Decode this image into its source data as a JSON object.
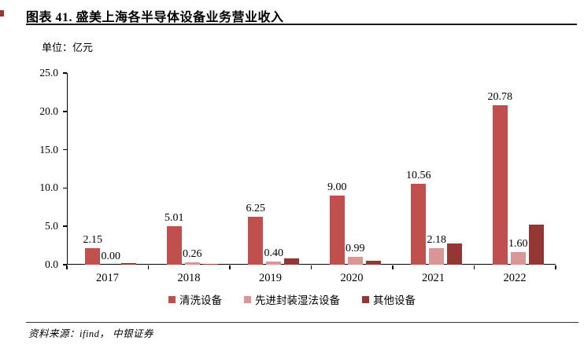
{
  "header": {
    "figure_title": "图表 41. 盛美上海各半导体设备业务营业收入",
    "unit_label": "单位：亿元"
  },
  "footer": {
    "source": "资料来源：ifind，  中银证券"
  },
  "colors": {
    "series_cleaning": "#C0504D",
    "series_adv_packaging": "#D99694",
    "series_other": "#943634",
    "axis": "#000000"
  },
  "chart_data": {
    "type": "bar",
    "title": "盛美上海各半导体设备业务营业收入",
    "unit": "亿元",
    "xlabel": "",
    "ylabel": "",
    "ylim": [
      0,
      25
    ],
    "yticks": [
      "0.0",
      "5.0",
      "10.0",
      "15.0",
      "20.0",
      "25.0"
    ],
    "grid": false,
    "legend_position": "bottom",
    "categories": [
      "2017",
      "2018",
      "2019",
      "2020",
      "2021",
      "2022"
    ],
    "series": [
      {
        "name": "清洗设备",
        "color": "#C0504D",
        "values": [
          2.15,
          5.01,
          6.25,
          9.0,
          10.56,
          20.78
        ],
        "labels": [
          "2.15",
          "5.01",
          "6.25",
          "9.00",
          "10.56",
          "20.78"
        ]
      },
      {
        "name": "先进封装湿法设备",
        "color": "#D99694",
        "values": [
          0.0,
          0.26,
          0.4,
          0.99,
          2.18,
          1.6
        ],
        "labels": [
          "0.00",
          "0.26",
          "0.40",
          "0.99",
          "2.18",
          "1.60"
        ]
      },
      {
        "name": "其他设备",
        "color": "#943634",
        "values": [
          0.25,
          0.1,
          0.85,
          0.55,
          2.75,
          5.25
        ],
        "labels": [
          "",
          "",
          "",
          "",
          "",
          ""
        ]
      }
    ]
  }
}
